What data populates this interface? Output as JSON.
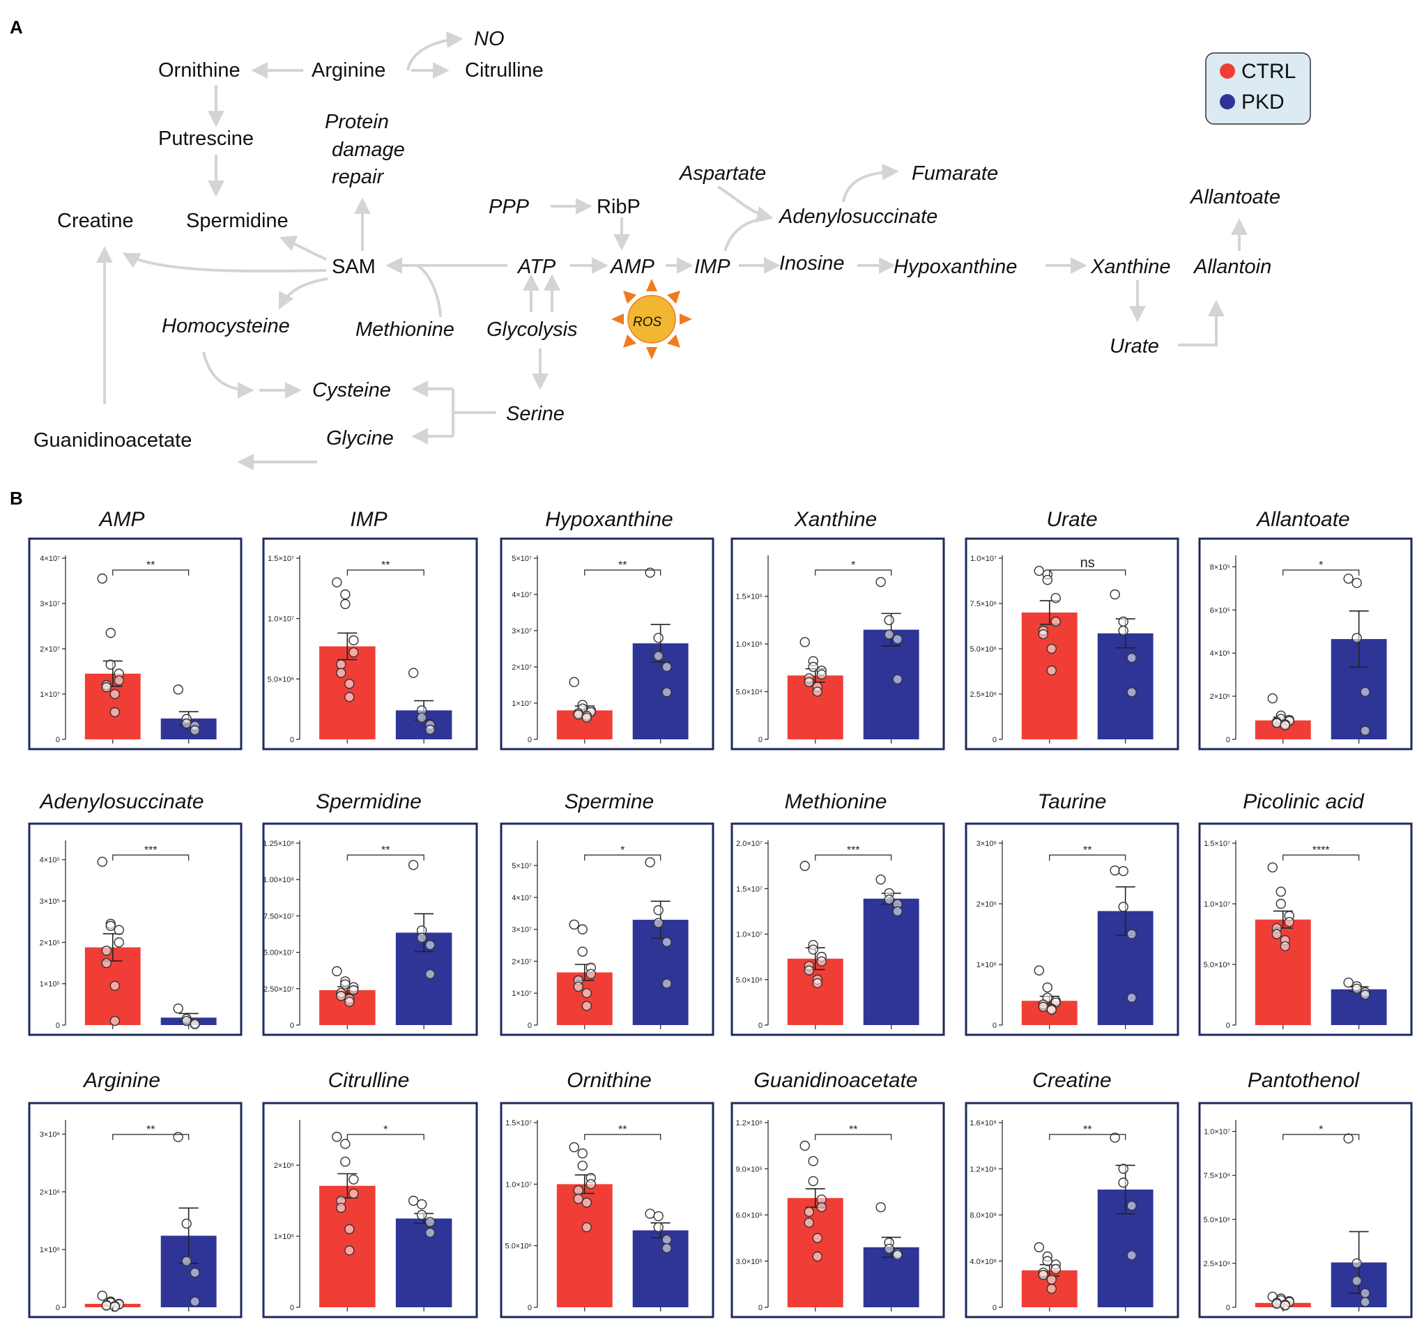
{
  "panel_a": {
    "letter": "A",
    "legend": {
      "ctrl": "CTRL",
      "pkd": "PKD"
    },
    "nodes": [
      {
        "id": "no",
        "label": "NO",
        "italic": true
      },
      {
        "id": "ornithine",
        "label": "Ornithine",
        "italic": false
      },
      {
        "id": "arginine",
        "label": "Arginine",
        "italic": false
      },
      {
        "id": "citrulline",
        "label": "Citrulline",
        "italic": false
      },
      {
        "id": "putrescine",
        "label": "Putrescine",
        "italic": false
      },
      {
        "id": "protein",
        "label": "Protein",
        "italic": true
      },
      {
        "id": "damage",
        "label": "damage",
        "italic": true
      },
      {
        "id": "repair",
        "label": "repair",
        "italic": true
      },
      {
        "id": "aspartate",
        "label": "Aspartate",
        "italic": true
      },
      {
        "id": "fumarate",
        "label": "Fumarate",
        "italic": true
      },
      {
        "id": "allantoate",
        "label": "Allantoate",
        "italic": true
      },
      {
        "id": "ppp",
        "label": "PPP",
        "italic": true
      },
      {
        "id": "ribp",
        "label": "RibP",
        "italic": false
      },
      {
        "id": "creatine",
        "label": "Creatine",
        "italic": false
      },
      {
        "id": "spermidine",
        "label": "Spermidine",
        "italic": false
      },
      {
        "id": "adenylosuccinate",
        "label": "Adenylosuccinate",
        "italic": true
      },
      {
        "id": "sam",
        "label": "SAM",
        "italic": false
      },
      {
        "id": "atp",
        "label": "ATP",
        "italic": true
      },
      {
        "id": "amp",
        "label": "AMP",
        "italic": true
      },
      {
        "id": "imp",
        "label": "IMP",
        "italic": true
      },
      {
        "id": "inosine",
        "label": "Inosine",
        "italic": true
      },
      {
        "id": "hypoxanthine",
        "label": "Hypoxanthine",
        "italic": true
      },
      {
        "id": "xanthine",
        "label": "Xanthine",
        "italic": true
      },
      {
        "id": "allantoin",
        "label": "Allantoin",
        "italic": true
      },
      {
        "id": "homocysteine",
        "label": "Homocysteine",
        "italic": true
      },
      {
        "id": "methionine",
        "label": "Methionine",
        "italic": true
      },
      {
        "id": "glycolysis",
        "label": "Glycolysis",
        "italic": true
      },
      {
        "id": "ros",
        "label": "ROS",
        "italic": true
      },
      {
        "id": "urate",
        "label": "Urate",
        "italic": true
      },
      {
        "id": "cysteine",
        "label": "Cysteine",
        "italic": true
      },
      {
        "id": "serine",
        "label": "Serine",
        "italic": true
      },
      {
        "id": "guanidinoacetate",
        "label": "Guanidinoacetate",
        "italic": false
      },
      {
        "id": "glycine",
        "label": "Glycine",
        "italic": true
      }
    ]
  },
  "panel_b": {
    "letter": "B"
  },
  "colors": {
    "ctrl": "#f03e36",
    "pkd": "#2e3597",
    "frame": "#1f2a5c",
    "arrow": "#d4d4d4",
    "legend_bg": "#dbeaf3",
    "ros_fill": "#f2b731",
    "ros_rays": "#f07a1e"
  },
  "chart_data": [
    {
      "type": "bar",
      "title": "AMP",
      "categories": [
        "CTRL",
        "PKD"
      ],
      "means": [
        14500000.0,
        4600000.0
      ],
      "sems": [
        2800000.0,
        1500000.0
      ],
      "ylim": [
        0,
        40000000.0
      ],
      "yticks": [
        0,
        10000000.0,
        20000000.0,
        30000000.0,
        40000000.0
      ],
      "ytick_labels": [
        "0",
        "1×10⁷",
        "2×10⁷",
        "3×10⁷",
        "4×10⁷"
      ],
      "significance": "**",
      "points": [
        [
          35500000.0,
          23500000.0,
          16500000.0,
          14500000.0,
          13000000.0,
          12000000.0,
          11500000.0,
          10000000.0,
          6000000.0
        ],
        [
          11000000.0,
          4500000.0,
          3500000.0,
          3000000.0,
          2000000.0
        ]
      ]
    },
    {
      "type": "bar",
      "title": "IMP",
      "categories": [
        "CTRL",
        "PKD"
      ],
      "means": [
        7700000.0,
        2400000.0
      ],
      "sems": [
        1100000.0,
        800000.0
      ],
      "ylim": [
        0,
        15000000.0
      ],
      "yticks": [
        0,
        5000000.0,
        10000000.0,
        15000000.0
      ],
      "ytick_labels": [
        "0",
        "5.0×10⁶",
        "1.0×10⁷",
        "1.5×10⁷"
      ],
      "significance": "**",
      "points": [
        [
          13000000.0,
          12000000.0,
          11200000.0,
          8200000.0,
          7200000.0,
          6200000.0,
          5500000.0,
          4600000.0,
          3500000.0
        ],
        [
          5500000.0,
          2400000.0,
          1800000.0,
          1200000.0,
          800000.0
        ]
      ]
    },
    {
      "type": "bar",
      "title": "Hypoxanthine",
      "categories": [
        "CTRL",
        "PKD"
      ],
      "means": [
        8000000.0,
        26500000.0
      ],
      "sems": [
        1200000.0,
        5200000.0
      ],
      "ylim": [
        0,
        50000000.0
      ],
      "yticks": [
        0,
        10000000.0,
        20000000.0,
        30000000.0,
        40000000.0,
        50000000.0
      ],
      "ytick_labels": [
        "0",
        "1×10⁷",
        "2×10⁷",
        "3×10⁷",
        "4×10⁷",
        "5×10⁷"
      ],
      "significance": "**",
      "points": [
        [
          15800000.0,
          9500000.0,
          8500000.0,
          8000000.0,
          7500000.0,
          7200000.0,
          6800000.0,
          6500000.0,
          6000000.0
        ],
        [
          46000000.0,
          28000000.0,
          23000000.0,
          20000000.0,
          13000000.0
        ]
      ]
    },
    {
      "type": "bar",
      "title": "Xanthine",
      "categories": [
        "CTRL",
        "PKD"
      ],
      "means": [
        67000,
        115000
      ],
      "sems": [
        7000,
        17000
      ],
      "ylim": [
        0,
        190000
      ],
      "yticks": [
        0,
        50000,
        100000,
        150000
      ],
      "ytick_labels": [
        "0",
        "5.0×10⁴",
        "1.0×10⁵",
        "1.5×10⁵"
      ],
      "significance": "*",
      "points": [
        [
          102000,
          82000,
          76000,
          72000,
          68000,
          64000,
          60000,
          55000,
          50000
        ],
        [
          165000,
          125000,
          110000,
          105000,
          63000
        ]
      ]
    },
    {
      "type": "bar",
      "title": "Urate",
      "categories": [
        "CTRL",
        "PKD"
      ],
      "means": [
        7000000.0,
        5850000.0
      ],
      "sems": [
        650000.0,
        800000.0
      ],
      "ylim": [
        0,
        10000000.0
      ],
      "yticks": [
        0,
        2500000.0,
        5000000.0,
        7500000.0,
        10000000.0
      ],
      "ytick_labels": [
        "0",
        "2.5×10⁶",
        "5.0×10⁶",
        "7.5×10⁶",
        "1.0×10⁷"
      ],
      "significance": "ns",
      "points": [
        [
          9300000.0,
          9100000.0,
          8800000.0,
          7800000.0,
          6500000.0,
          6000000.0,
          5800000.0,
          5000000.0,
          3800000.0
        ],
        [
          8000000.0,
          6500000.0,
          6000000.0,
          4500000.0,
          2600000.0
        ]
      ]
    },
    {
      "type": "bar",
      "title": "Allantoate",
      "categories": [
        "CTRL",
        "PKD"
      ],
      "means": [
        88000,
        465000
      ],
      "sems": [
        15000,
        130000
      ],
      "ylim": [
        0,
        840000
      ],
      "yticks": [
        0,
        200000,
        400000,
        600000,
        800000
      ],
      "ytick_labels": [
        "0",
        "2×10⁵",
        "4×10⁵",
        "6×10⁵",
        "8×10⁵"
      ],
      "significance": "*",
      "points": [
        [
          190000,
          110000,
          95000,
          90000,
          85000,
          80000,
          75000,
          70000,
          65000
        ],
        [
          745000,
          725000,
          470000,
          220000,
          40000
        ]
      ]
    },
    {
      "type": "bar",
      "title": "Adenylosuccinate",
      "categories": [
        "CTRL",
        "PKD"
      ],
      "means": [
        188000,
        18000
      ],
      "sems": [
        33000,
        10000
      ],
      "ylim": [
        0,
        440000
      ],
      "yticks": [
        0,
        100000,
        200000,
        300000,
        400000
      ],
      "ytick_labels": [
        "0",
        "1×10⁵",
        "2×10⁵",
        "3×10⁵",
        "4×10⁵"
      ],
      "significance": "***",
      "points": [
        [
          395000,
          245000,
          240000,
          230000,
          200000,
          180000,
          150000,
          95000,
          10000
        ],
        [
          40000,
          15000,
          10000,
          5000,
          2000
        ]
      ]
    },
    {
      "type": "bar",
      "title": "Spermidine",
      "categories": [
        "CTRL",
        "PKD"
      ],
      "means": [
        24000000.0,
        63500000.0
      ],
      "sems": [
        2300000.0,
        13000000.0
      ],
      "ylim": [
        0,
        125000000.0
      ],
      "yticks": [
        0,
        25000000.0,
        50000000.0,
        75000000.0,
        100000000.0,
        125000000.0
      ],
      "ytick_labels": [
        "0",
        "2.50×10⁷",
        "5.00×10⁷",
        "7.50×10⁷",
        "1.00×10⁸",
        "1.25×10⁸"
      ],
      "significance": "**",
      "points": [
        [
          37000000.0,
          30000000.0,
          28000000.0,
          26000000.0,
          24000000.0,
          22000000.0,
          20000000.0,
          18000000.0,
          16000000.0
        ],
        [
          110000000.0,
          65000000.0,
          60000000.0,
          55000000.0,
          35000000.0
        ]
      ]
    },
    {
      "type": "bar",
      "title": "Spermine",
      "categories": [
        "CTRL",
        "PKD"
      ],
      "means": [
        16500000.0,
        33000000.0
      ],
      "sems": [
        2500000.0,
        5800000.0
      ],
      "ylim": [
        0,
        57000000.0
      ],
      "yticks": [
        0,
        10000000.0,
        20000000.0,
        30000000.0,
        40000000.0,
        50000000.0
      ],
      "ytick_labels": [
        "0",
        "1×10⁷",
        "2×10⁷",
        "3×10⁷",
        "4×10⁷",
        "5×10⁷"
      ],
      "significance": "*",
      "points": [
        [
          31500000.0,
          30000000.0,
          23000000.0,
          18000000.0,
          16000000.0,
          14000000.0,
          12000000.0,
          10000000.0,
          6000000.0
        ],
        [
          51000000.0,
          36000000.0,
          32000000.0,
          26000000.0,
          13000000.0
        ]
      ]
    },
    {
      "type": "bar",
      "title": "Methionine",
      "categories": [
        "CTRL",
        "PKD"
      ],
      "means": [
        7300000.0,
        13900000.0
      ],
      "sems": [
        1200000.0,
        600000.0
      ],
      "ylim": [
        0,
        20000000.0
      ],
      "yticks": [
        0,
        5000000.0,
        10000000.0,
        15000000.0,
        20000000.0
      ],
      "ytick_labels": [
        "0",
        "5.0×10⁶",
        "1.0×10⁷",
        "1.5×10⁷",
        "2.0×10⁷"
      ],
      "significance": "***",
      "points": [
        [
          17500000.0,
          8800000.0,
          8300000.0,
          7500000.0,
          7000000.0,
          6500000.0,
          6000000.0,
          5000000.0,
          4600000.0
        ],
        [
          16000000.0,
          14500000.0,
          13800000.0,
          13300000.0,
          12500000.0
        ]
      ]
    },
    {
      "type": "bar",
      "title": "Taurine",
      "categories": [
        "CTRL",
        "PKD"
      ],
      "means": [
        400000.0,
        1880000.0
      ],
      "sems": [
        75000.0,
        400000.0
      ],
      "ylim": [
        0,
        3000000.0
      ],
      "yticks": [
        0,
        1000000.0,
        2000000.0,
        3000000.0
      ],
      "ytick_labels": [
        "0",
        "1×10⁶",
        "2×10⁶",
        "3×10⁶"
      ],
      "significance": "**",
      "points": [
        [
          900000.0,
          620000.0,
          450000.0,
          400000.0,
          370000.0,
          340000.0,
          300000.0,
          270000.0,
          250000.0
        ],
        [
          2550000.0,
          2540000.0,
          1950000.0,
          1500000.0,
          450000.0
        ]
      ]
    },
    {
      "type": "bar",
      "title": "Picolinic acid",
      "categories": [
        "CTRL",
        "PKD"
      ],
      "means": [
        8700000.0,
        2950000.0
      ],
      "sems": [
        700000.0,
        200000.0
      ],
      "ylim": [
        0,
        15000000.0
      ],
      "yticks": [
        0,
        5000000.0,
        10000000.0,
        15000000.0
      ],
      "ytick_labels": [
        "0",
        "5.0×10⁶",
        "1.0×10⁷",
        "1.5×10⁷"
      ],
      "significance": "****",
      "points": [
        [
          13000000.0,
          11000000.0,
          10000000.0,
          9000000.0,
          8500000.0,
          8000000.0,
          7500000.0,
          7000000.0,
          6500000.0
        ],
        [
          3500000.0,
          3200000.0,
          3000000.0,
          2700000.0,
          2500000.0
        ]
      ]
    },
    {
      "type": "bar",
      "title": "Arginine",
      "categories": [
        "CTRL",
        "PKD"
      ],
      "means": [
        60000.0,
        1240000.0
      ],
      "sems": [
        20000.0,
        480000.0
      ],
      "ylim": [
        0,
        3200000.0
      ],
      "yticks": [
        0,
        1000000.0,
        2000000.0,
        3000000.0
      ],
      "ytick_labels": [
        "0",
        "1×10⁶",
        "2×10⁶",
        "3×10⁶"
      ],
      "significance": "**",
      "points": [
        [
          200000.0,
          100000.0,
          80000.0,
          60000.0,
          50000.0,
          40000.0,
          30000.0,
          20000.0,
          10000.0
        ],
        [
          2950000.0,
          1450000.0,
          800000.0,
          600000.0,
          100000.0
        ]
      ]
    },
    {
      "type": "bar",
      "title": "Citrulline",
      "categories": [
        "CTRL",
        "PKD"
      ],
      "means": [
        1710000.0,
        1250000.0
      ],
      "sems": [
        170000.0,
        70000.0
      ],
      "ylim": [
        0,
        2600000.0
      ],
      "yticks": [
        0,
        1000000.0,
        2000000.0
      ],
      "ytick_labels": [
        "0",
        "1×10⁶",
        "2×10⁶"
      ],
      "significance": "*",
      "points": [
        [
          2400000.0,
          2300000.0,
          2050000.0,
          1800000.0,
          1600000.0,
          1500000.0,
          1400000.0,
          1100000.0,
          800000.0
        ],
        [
          1500000.0,
          1450000.0,
          1300000.0,
          1200000.0,
          1050000.0
        ]
      ]
    },
    {
      "type": "bar",
      "title": "Ornithine",
      "categories": [
        "CTRL",
        "PKD"
      ],
      "means": [
        10000000.0,
        6250000.0
      ],
      "sems": [
        750000.0,
        600000.0
      ],
      "ylim": [
        0,
        15000000.0
      ],
      "yticks": [
        0,
        5000000.0,
        10000000.0,
        15000000.0
      ],
      "ytick_labels": [
        "0",
        "5.0×10⁶",
        "1.0×10⁷",
        "1.5×10⁷"
      ],
      "significance": "**",
      "points": [
        [
          13000000.0,
          12500000.0,
          11500000.0,
          10500000.0,
          10000000.0,
          9500000.0,
          8800000.0,
          8500000.0,
          6500000.0
        ],
        [
          7600000.0,
          7400000.0,
          6500000.0,
          5500000.0,
          4800000.0
        ]
      ]
    },
    {
      "type": "bar",
      "title": "Guanidinoacetate",
      "categories": [
        "CTRL",
        "PKD"
      ],
      "means": [
        710000.0,
        390000.0
      ],
      "sems": [
        60000.0,
        65000.0
      ],
      "ylim": [
        0,
        1200000.0
      ],
      "yticks": [
        0,
        300000.0,
        600000.0,
        900000.0,
        1200000.0
      ],
      "ytick_labels": [
        "0",
        "3.0×10⁵",
        "6.0×10⁵",
        "9.0×10⁵",
        "1.2×10⁶"
      ],
      "significance": "**",
      "points": [
        [
          1050000.0,
          950000.0,
          820000.0,
          700000.0,
          650000.0,
          620000.0,
          550000.0,
          450000.0,
          330000.0
        ],
        [
          650000.0,
          420000.0,
          380000.0,
          350000.0,
          340000.0
        ]
      ]
    },
    {
      "type": "bar",
      "title": "Creatine",
      "categories": [
        "CTRL",
        "PKD"
      ],
      "means": [
        320000000.0,
        1020000000.0
      ],
      "sems": [
        50000000.0,
        210000000.0
      ],
      "ylim": [
        0,
        1600000000.0
      ],
      "yticks": [
        0,
        400000000.0,
        800000000.0,
        1200000000.0,
        1600000000.0
      ],
      "ytick_labels": [
        "0",
        "4.0×10⁸",
        "8.0×10⁸",
        "1.2×10⁹",
        "1.6×10⁹"
      ],
      "significance": "**",
      "points": [
        [
          520000000.0,
          440000000.0,
          400000000.0,
          370000000.0,
          330000000.0,
          300000000.0,
          280000000.0,
          240000000.0,
          160000000.0
        ],
        [
          1470000000.0,
          1200000000.0,
          1080000000.0,
          880000000.0,
          450000000.0
        ]
      ]
    },
    {
      "type": "bar",
      "title": "Pantothenol",
      "categories": [
        "CTRL",
        "PKD"
      ],
      "means": [
        250000.0,
        2550000.0
      ],
      "sems": [
        60000.0,
        1750000.0
      ],
      "ylim": [
        0,
        10500000.0
      ],
      "yticks": [
        0,
        2500000.0,
        5000000.0,
        7500000.0,
        10000000.0
      ],
      "ytick_labels": [
        "0",
        "2.5×10⁶",
        "5.0×10⁶",
        "7.5×10⁶",
        "1.0×10⁷"
      ],
      "significance": "*",
      "points": [
        [
          600000.0,
          500000.0,
          400000.0,
          350000.0,
          300000.0,
          250000.0,
          200000.0,
          150000.0,
          100000.0
        ],
        [
          9600000.0,
          2500000.0,
          1500000.0,
          800000.0,
          300000.0
        ]
      ]
    }
  ]
}
